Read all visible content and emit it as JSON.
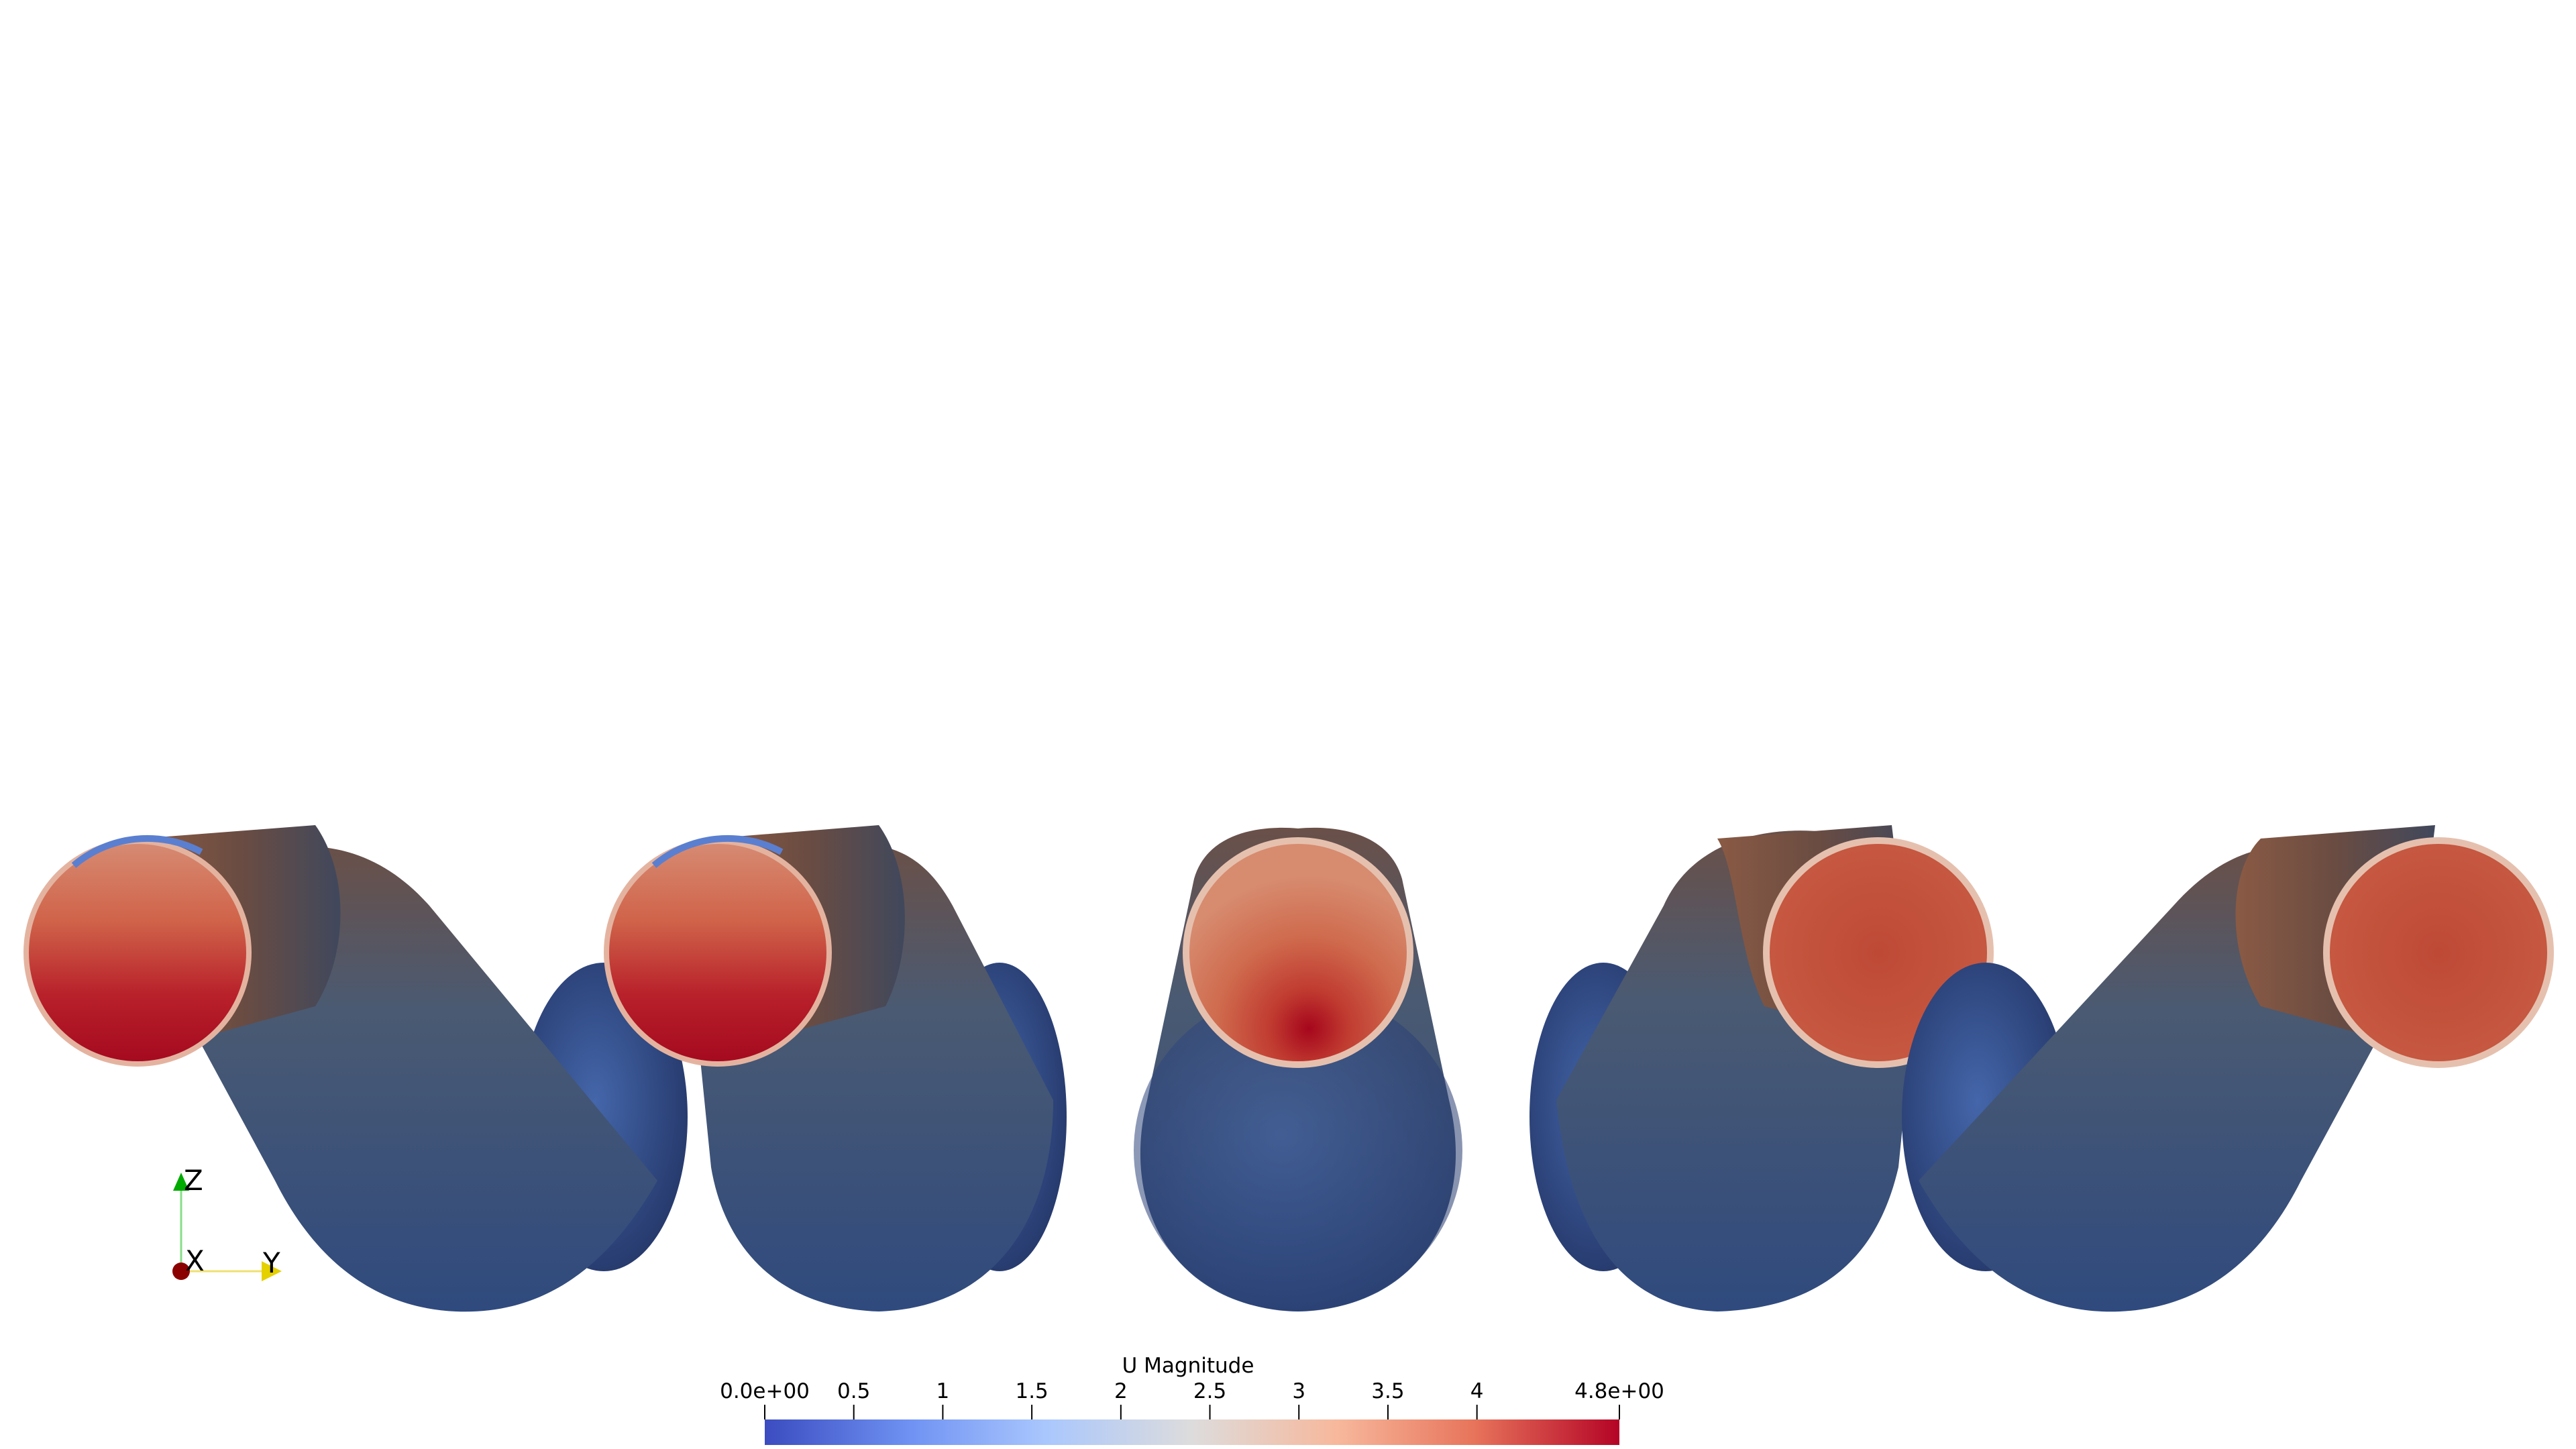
{
  "colorbar": {
    "title": "U Magnitude",
    "range": [
      0,
      4.8
    ],
    "tick_labels": [
      "0.0e+00",
      "0.5",
      "1",
      "1.5",
      "2",
      "2.5",
      "3",
      "3.5",
      "4",
      "4.8e+00"
    ],
    "tick_values": [
      0,
      0.5,
      1,
      1.5,
      2,
      2.5,
      3,
      3.5,
      4,
      4.8
    ],
    "colormap": "cool-to-warm",
    "colormap_stops": [
      "#3b4cc0",
      "#6f92f3",
      "#aac7fd",
      "#dddcdc",
      "#f7b89c",
      "#e7745b",
      "#b40426"
    ]
  },
  "axes_triad": {
    "labels": [
      "Z",
      "X",
      "Y"
    ],
    "colors": {
      "z": "#00aa00",
      "x": "#8b0000",
      "y": "#e5d000"
    }
  },
  "scene": {
    "description_colors": {
      "body": "#34507f",
      "inlet_face_hot": "#b01020",
      "inlet_face_warm": "#c2503a"
    }
  }
}
